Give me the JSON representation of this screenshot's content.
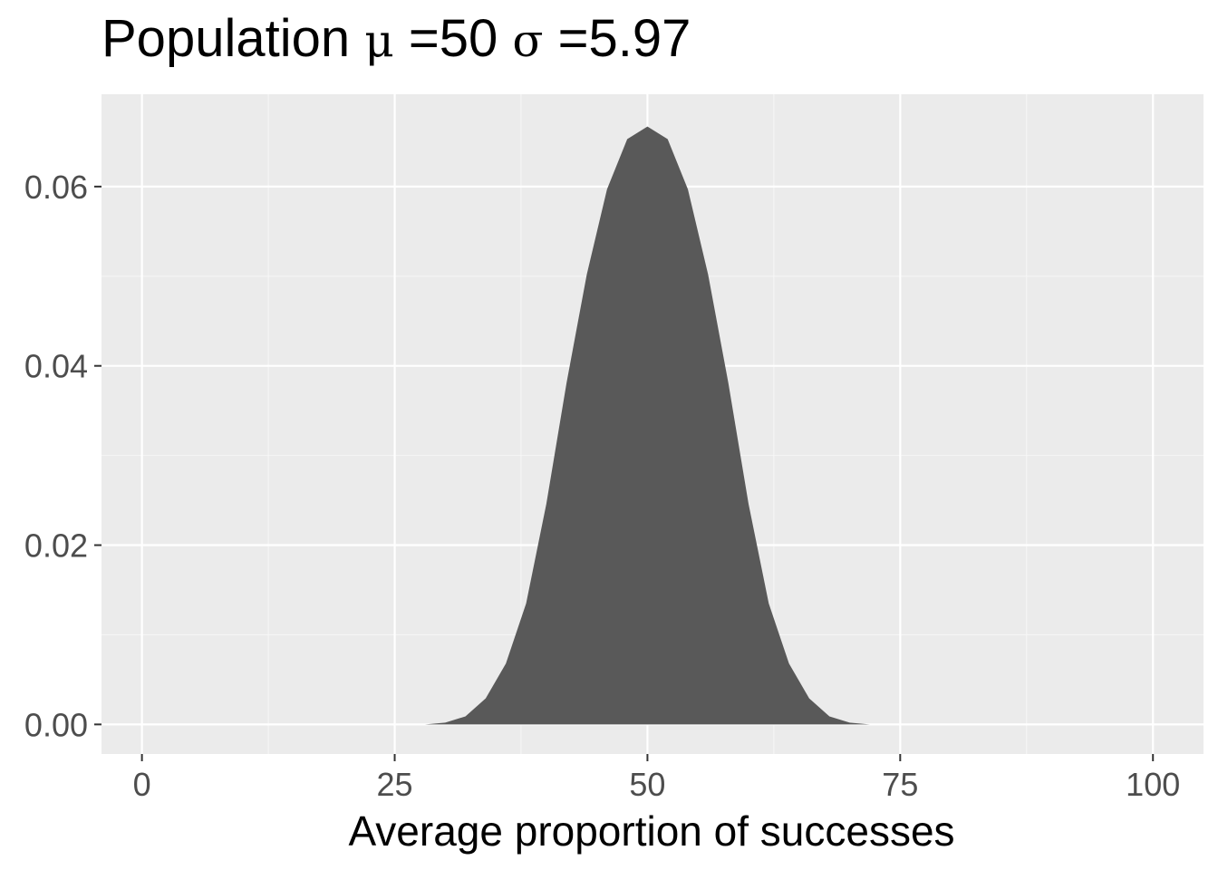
{
  "chart_data": {
    "type": "area",
    "title": {
      "prefix": "Population ",
      "mu_symbol": "μ",
      "mu_text": " =50 ",
      "sigma_symbol": "σ",
      "sigma_text": " =5.97"
    },
    "xlabel": "Average proportion of successes",
    "ylabel": "",
    "xlim": [
      -4,
      105
    ],
    "ylim": [
      -0.0033,
      0.0703
    ],
    "x_ticks": [
      0,
      25,
      50,
      75,
      100
    ],
    "x_tick_labels": [
      "0",
      "25",
      "50",
      "75",
      "100"
    ],
    "x_minor_ticks": [
      12.5,
      37.5,
      62.5,
      87.5
    ],
    "y_ticks": [
      0,
      0.02,
      0.04,
      0.06
    ],
    "y_tick_labels": [
      "0.00",
      "0.02",
      "0.04",
      "0.06"
    ],
    "y_minor_ticks": [
      0.01,
      0.03,
      0.05
    ],
    "grid": true,
    "series": [
      {
        "x": [
          28,
          30,
          32,
          34,
          36,
          38,
          40,
          42,
          44,
          46,
          48,
          50,
          52,
          54,
          56,
          58,
          60,
          62,
          64,
          66,
          68,
          70,
          72
        ],
        "y": [
          0.0,
          0.0002,
          0.0009,
          0.0029,
          0.0068,
          0.0135,
          0.0246,
          0.0381,
          0.0502,
          0.0597,
          0.0653,
          0.0667,
          0.0653,
          0.0597,
          0.0502,
          0.0381,
          0.0246,
          0.0135,
          0.0068,
          0.0029,
          0.0009,
          0.0002,
          0.0
        ],
        "color": "#595959"
      }
    ],
    "colors": {
      "panel_background": "#ebebeb",
      "grid_major": "#ffffff",
      "grid_minor": "#f6f6f6",
      "fill": "#595959",
      "tick_text": "#4d4d4d",
      "tick_mark": "#333333"
    }
  }
}
